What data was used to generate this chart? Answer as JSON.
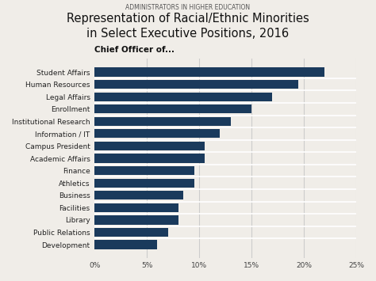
{
  "supertitle": "ADMINISTRATORS IN HIGHER EDUCATION",
  "title": "Representation of Racial/Ethnic Minorities\nin Select Executive Positions, 2016",
  "subtitle": "Chief Officer of...",
  "categories": [
    "Development",
    "Public Relations",
    "Library",
    "Facilities",
    "Business",
    "Athletics",
    "Finance",
    "Academic Affairs",
    "Campus President",
    "Information / IT",
    "Institutional Research",
    "Enrollment",
    "Legal Affairs",
    "Human Resources",
    "Student Affairs"
  ],
  "values": [
    6.0,
    7.0,
    8.0,
    8.0,
    8.5,
    9.5,
    9.5,
    10.5,
    10.5,
    12.0,
    13.0,
    15.0,
    17.0,
    19.5,
    22.0
  ],
  "bar_color": "#1a3a5c",
  "background_color": "#f0ede8",
  "xlim": [
    0,
    25
  ],
  "xticks": [
    0,
    5,
    10,
    15,
    20,
    25
  ],
  "xticklabels": [
    "0%",
    "5%",
    "10%",
    "15%",
    "20%",
    "25%"
  ],
  "grid_color": "#ffffff"
}
